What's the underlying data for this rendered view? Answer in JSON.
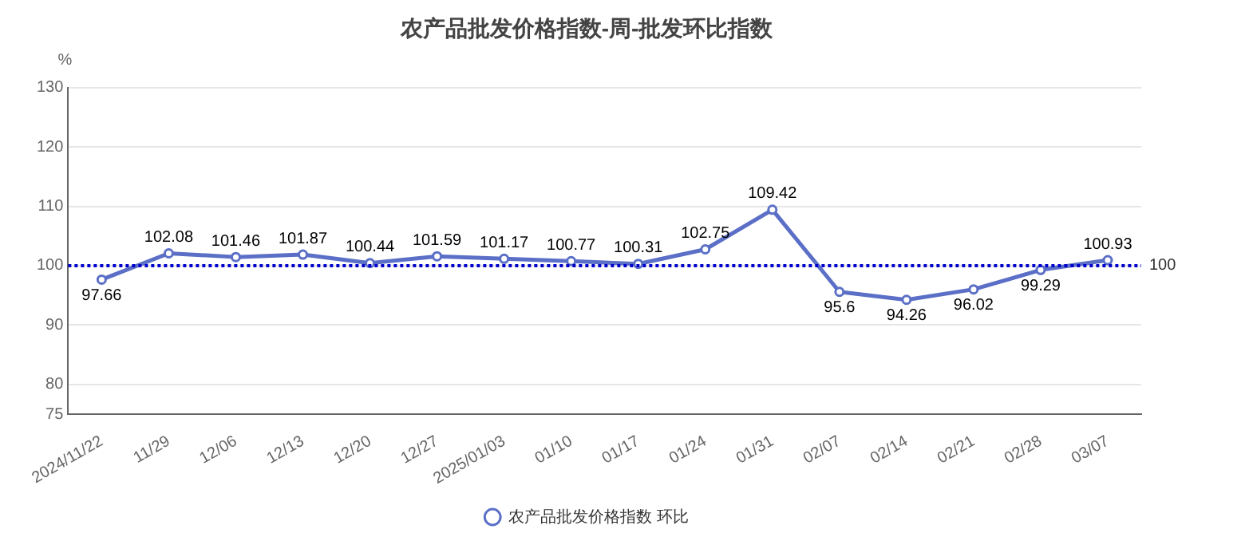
{
  "chart_data": {
    "type": "line",
    "title": "农产品批发价格指数-周-批发环比指数",
    "ylabel": "%",
    "categories": [
      "2024/11/22",
      "11/29",
      "12/06",
      "12/13",
      "12/20",
      "12/27",
      "2025/01/03",
      "01/10",
      "01/17",
      "01/24",
      "01/31",
      "02/07",
      "02/14",
      "02/21",
      "02/28",
      "03/07"
    ],
    "series": [
      {
        "name": "农产品批发价格指数 环比",
        "color": "#5b6fc7",
        "values": [
          97.66,
          102.08,
          101.46,
          101.87,
          100.44,
          101.59,
          101.17,
          100.77,
          100.31,
          102.75,
          109.42,
          95.6,
          94.26,
          96.02,
          99.29,
          100.93
        ]
      }
    ],
    "ylim": [
      75,
      130
    ],
    "yticks": [
      75,
      80,
      90,
      100,
      110,
      120,
      130
    ],
    "ref_lines": [
      {
        "axis": "y",
        "value": 100,
        "label": "100",
        "color": "#0000cc",
        "line_style": "dotted"
      }
    ],
    "data_labels": true,
    "grid": "y",
    "legend": "bottom",
    "marker": "circle",
    "line_style": "solid"
  }
}
